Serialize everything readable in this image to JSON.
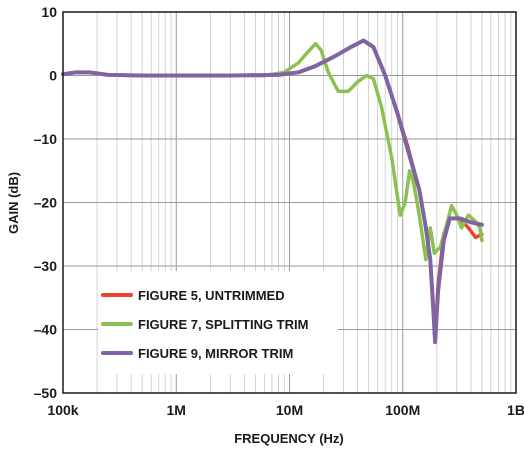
{
  "chart_data": {
    "type": "line",
    "title": "",
    "xlabel": "FREQUENCY (Hz)",
    "ylabel": "GAIN (dB)",
    "x_scale": "log",
    "xlim": [
      100000,
      1000000000
    ],
    "ylim": [
      -50,
      10
    ],
    "x_ticks": [
      100000,
      1000000,
      10000000,
      100000000,
      1000000000
    ],
    "x_tick_labels": [
      "100k",
      "1M",
      "10M",
      "100M",
      "1B"
    ],
    "y_ticks": [
      10,
      0,
      -10,
      -20,
      -30,
      -40,
      -50
    ],
    "y_tick_labels": [
      "10",
      "0",
      "–10",
      "–20",
      "–30",
      "–40",
      "–50"
    ],
    "grid": true,
    "legend_position": "bottom-left",
    "series": [
      {
        "name": "FIGURE 5, UNTRIMMED",
        "color": "#e8452c",
        "points": [
          [
            100000,
            0.2
          ],
          [
            130000,
            0.5
          ],
          [
            170000,
            0.5
          ],
          [
            250000,
            0.1
          ],
          [
            500000,
            0.0
          ],
          [
            1000000,
            0.0
          ],
          [
            3000000,
            0.0
          ],
          [
            8000000,
            0.1
          ],
          [
            12000000,
            0.5
          ],
          [
            17000000,
            1.5
          ],
          [
            25000000,
            3.0
          ],
          [
            35000000,
            4.5
          ],
          [
            45000000,
            5.5
          ],
          [
            55000000,
            4.5
          ],
          [
            70000000,
            0.0
          ],
          [
            90000000,
            -6.0
          ],
          [
            110000000,
            -11.0
          ],
          [
            140000000,
            -18.0
          ],
          [
            160000000,
            -24.0
          ],
          [
            175000000,
            -29.0
          ],
          [
            185000000,
            -36.0
          ],
          [
            193000000,
            -42.0
          ],
          [
            205000000,
            -33.0
          ],
          [
            230000000,
            -25.0
          ],
          [
            260000000,
            -22.5
          ],
          [
            320000000,
            -22.5
          ],
          [
            380000000,
            -24.0
          ],
          [
            440000000,
            -25.5
          ],
          [
            500000000,
            -25.0
          ]
        ]
      },
      {
        "name": "FIGURE 7, SPLITTING TRIM",
        "color": "#8cc152",
        "points": [
          [
            100000,
            0.2
          ],
          [
            130000,
            0.5
          ],
          [
            170000,
            0.5
          ],
          [
            250000,
            0.1
          ],
          [
            500000,
            0.0
          ],
          [
            1000000,
            0.0
          ],
          [
            3000000,
            0.0
          ],
          [
            6000000,
            0.0
          ],
          [
            9000000,
            0.5
          ],
          [
            12000000,
            2.0
          ],
          [
            15000000,
            4.0
          ],
          [
            17000000,
            5.0
          ],
          [
            19000000,
            4.0
          ],
          [
            22000000,
            0.5
          ],
          [
            27000000,
            -2.5
          ],
          [
            33000000,
            -2.5
          ],
          [
            40000000,
            -1.0
          ],
          [
            48000000,
            0.0
          ],
          [
            55000000,
            -0.5
          ],
          [
            65000000,
            -5.0
          ],
          [
            80000000,
            -13.0
          ],
          [
            95000000,
            -22.0
          ],
          [
            105000000,
            -20.0
          ],
          [
            115000000,
            -15.0
          ],
          [
            125000000,
            -17.0
          ],
          [
            140000000,
            -22.0
          ],
          [
            160000000,
            -29.0
          ],
          [
            175000000,
            -24.0
          ],
          [
            190000000,
            -28.0
          ],
          [
            215000000,
            -27.0
          ],
          [
            240000000,
            -24.0
          ],
          [
            270000000,
            -20.5
          ],
          [
            300000000,
            -22.0
          ],
          [
            330000000,
            -24.0
          ],
          [
            380000000,
            -22.0
          ],
          [
            440000000,
            -23.0
          ],
          [
            480000000,
            -24.0
          ],
          [
            500000000,
            -26.0
          ]
        ]
      },
      {
        "name": "FIGURE 9, MIRROR TRIM",
        "color": "#8064a2",
        "points": [
          [
            100000,
            0.2
          ],
          [
            130000,
            0.5
          ],
          [
            170000,
            0.5
          ],
          [
            250000,
            0.1
          ],
          [
            500000,
            0.0
          ],
          [
            1000000,
            0.0
          ],
          [
            3000000,
            0.0
          ],
          [
            8000000,
            0.1
          ],
          [
            12000000,
            0.5
          ],
          [
            17000000,
            1.5
          ],
          [
            25000000,
            3.0
          ],
          [
            35000000,
            4.5
          ],
          [
            45000000,
            5.5
          ],
          [
            55000000,
            4.5
          ],
          [
            70000000,
            0.0
          ],
          [
            90000000,
            -6.0
          ],
          [
            110000000,
            -11.5
          ],
          [
            140000000,
            -18.0
          ],
          [
            160000000,
            -24.0
          ],
          [
            175000000,
            -29.0
          ],
          [
            185000000,
            -36.0
          ],
          [
            193000000,
            -42.0
          ],
          [
            205000000,
            -34.0
          ],
          [
            230000000,
            -26.0
          ],
          [
            260000000,
            -22.5
          ],
          [
            320000000,
            -22.5
          ],
          [
            380000000,
            -23.0
          ],
          [
            440000000,
            -23.3
          ],
          [
            500000000,
            -23.5
          ]
        ]
      }
    ]
  }
}
